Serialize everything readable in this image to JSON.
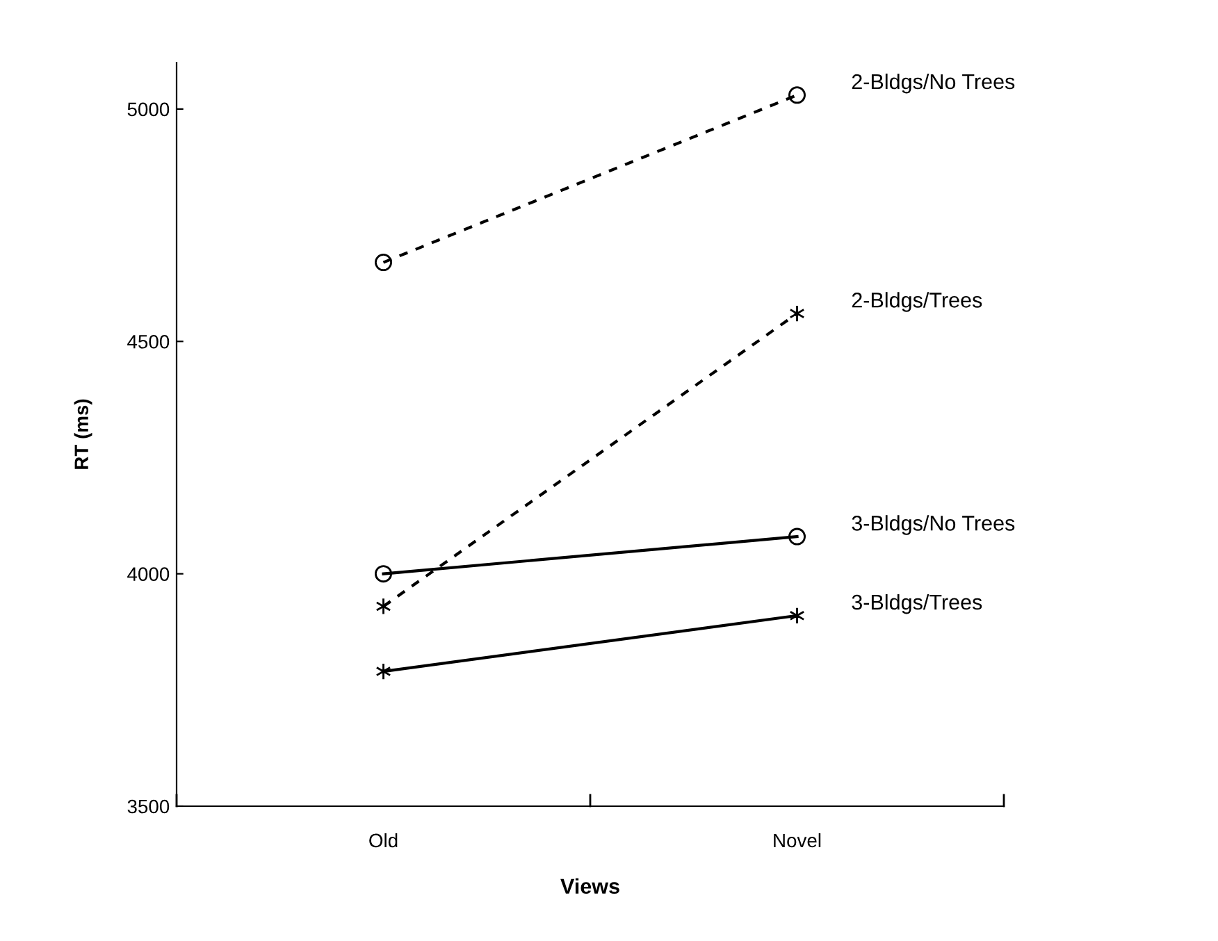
{
  "chart_data": {
    "type": "line",
    "xlabel": "Views",
    "ylabel": "RT (ms)",
    "categories": [
      "Old",
      "Novel"
    ],
    "series": [
      {
        "name": "2-Bldgs/No Trees",
        "color": "#000000",
        "values": [
          4670,
          5030
        ],
        "marker": "circle",
        "line_style": "dashed"
      },
      {
        "name": "2-Bldgs/Trees",
        "color": "#000000",
        "values": [
          3930,
          4560
        ],
        "marker": "cross",
        "line_style": "dashed"
      },
      {
        "name": "3-Bldgs/No Trees",
        "color": "#000000",
        "values": [
          4000,
          4080
        ],
        "marker": "circle",
        "line_style": "solid"
      },
      {
        "name": "3-Bldgs/Trees",
        "color": "#000000",
        "values": [
          3790,
          3910
        ],
        "marker": "cross",
        "line_style": "solid"
      }
    ],
    "ylim": [
      3500,
      5100
    ],
    "yticks": [
      3500,
      4000,
      4500,
      5000
    ],
    "grid": false,
    "legend": false
  }
}
